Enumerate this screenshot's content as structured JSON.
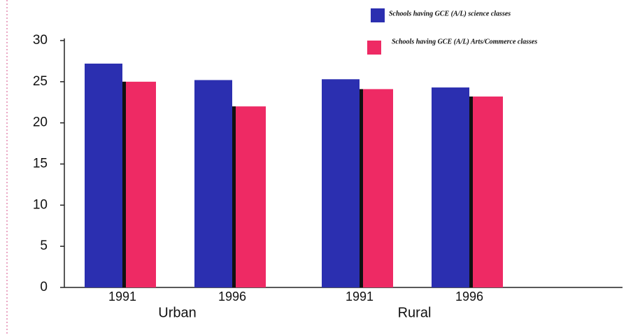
{
  "chart_data": {
    "type": "bar",
    "categories": [
      "1991",
      "1996",
      "1991",
      "1996"
    ],
    "groups": [
      "Urban",
      "Rural"
    ],
    "series": [
      {
        "name": "Schools having GCE (A/L) science classes",
        "color": "#2b2fb0",
        "values": [
          27.2,
          25.2,
          25.3,
          24.3
        ]
      },
      {
        "name": "Schools having GCE (A/L) Arts/Commerce classes",
        "color": "#ee2a64",
        "values": [
          25,
          22,
          24.1,
          23.2
        ]
      }
    ],
    "ylim": [
      0,
      30
    ],
    "yticks": [
      0,
      5,
      10,
      15,
      20,
      25,
      30
    ],
    "grid": false,
    "legend": "top-right"
  }
}
